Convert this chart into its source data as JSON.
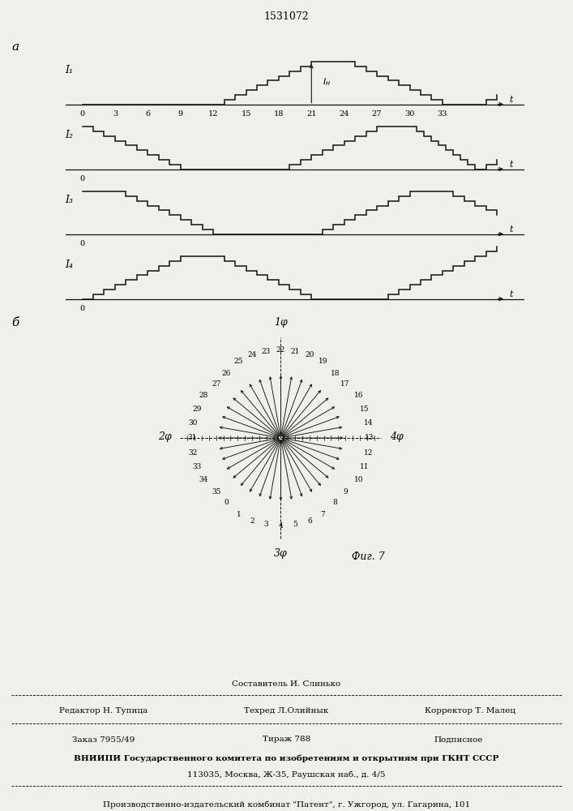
{
  "title": "1531072",
  "label_a": "а",
  "label_b": "б",
  "fig7_label": "Фиг. 7",
  "phase_labels": [
    "1φ",
    "2φ",
    "3φ",
    "4φ"
  ],
  "waveform_labels": [
    "I₁",
    "I₂",
    "I₃",
    "I₄"
  ],
  "time_ticks": [
    3,
    6,
    9,
    12,
    15,
    18,
    21,
    24,
    27,
    30,
    33
  ],
  "background_color": "#f0f0eb",
  "line_color": "#111111",
  "num_steps": 9,
  "footer_lines": [
    "Составитель И. Слинько",
    "Редактор Н. Тупица",
    "Техред Л.Олийнык",
    "Корректор Т. Малец",
    "Заказ 7955/49",
    "Тираж 788",
    "Подписное",
    "ВНИИПИ Государственного комитета по изобретениям и открытиям при ГКНТ СССР",
    "113035, Москва, Ж-35, Раушская наб., д. 4/5",
    "Производственно-издательский комбинат \"Патент\", г. Ужгород, ул. Гагарина, 101"
  ],
  "num_vectors": 36
}
